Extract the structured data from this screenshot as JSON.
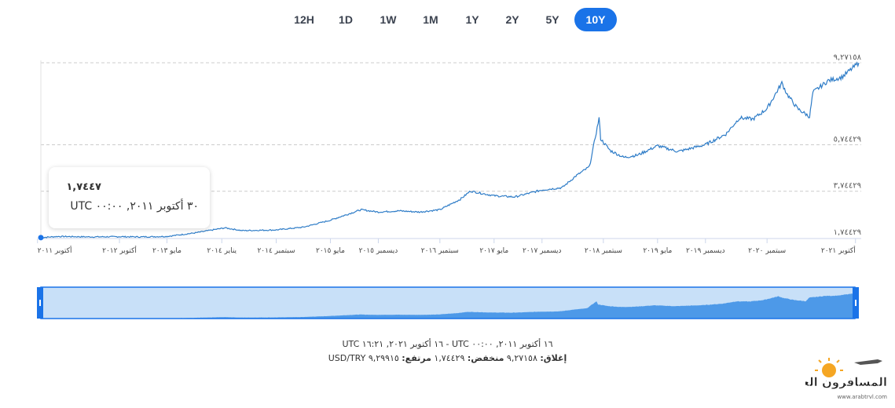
{
  "range_buttons": [
    {
      "label": "12H",
      "active": false
    },
    {
      "label": "1D",
      "active": false
    },
    {
      "label": "1W",
      "active": false
    },
    {
      "label": "1M",
      "active": false
    },
    {
      "label": "1Y",
      "active": false
    },
    {
      "label": "2Y",
      "active": false
    },
    {
      "label": "5Y",
      "active": false
    },
    {
      "label": "10Y",
      "active": true
    }
  ],
  "tooltip": {
    "value": "١,٧٤٤٧",
    "date": "٣٠ أكتوبر ٢٠١١, ٠٠:٠٠ UTC"
  },
  "footer": {
    "period": "UTC ١٦ أكتوبر ٢٠٢١, ١٦:٢١ - UTC ١٦ أكتوبر ٢٠١١, ٠٠:٠٠",
    "close_label": "إغلاق:",
    "close_value": "٩,٢٧١٥٨",
    "low_label": "منخفض:",
    "low_value": "١,٧٤٤٢٩",
    "high_label": "مرتفع:",
    "high_value": "٩,٢٩٩١٥",
    "pair": "USD/TRY"
  },
  "watermark": {
    "brand": "المسافرون العرب",
    "url": "www.arabtrvl.com"
  },
  "colors": {
    "accent": "#1a73e8",
    "line": "#2e7cc7",
    "navigator_fill": "#4d99e8",
    "navigator_bg": "#c8e0f8",
    "grid": "#cccccc"
  },
  "chart_data": {
    "type": "line",
    "title": "",
    "xlabel": "",
    "ylabel": "",
    "x_range": [
      "2011-10-16",
      "2021-10-16"
    ],
    "ylim": [
      1.74429,
      9.27158
    ],
    "grid": "horizontal dashed",
    "y_ticks": [
      {
        "value": 1.74429,
        "label": "١,٧٤٤٢٩"
      },
      {
        "value": 3.74429,
        "label": "٣,٧٤٤٢٩"
      },
      {
        "value": 5.74429,
        "label": "٥,٧٤٤٢٩"
      },
      {
        "value": 9.27158,
        "label": "٩,٢٧١٥٨"
      }
    ],
    "x_ticks": [
      {
        "date": "2011-10-01",
        "label": "أكتوبر ٢٠١١"
      },
      {
        "date": "2012-10-01",
        "label": "أكتوبر ٢٠١٢"
      },
      {
        "date": "2013-05-01",
        "label": "مايو ٢٠١٣"
      },
      {
        "date": "2014-01-01",
        "label": "يناير ٢٠١٤"
      },
      {
        "date": "2014-09-01",
        "label": "سبتمبر ٢٠١٤"
      },
      {
        "date": "2015-05-01",
        "label": "مايو ٢٠١٥"
      },
      {
        "date": "2015-12-01",
        "label": "ديسمبر ٢٠١٥"
      },
      {
        "date": "2016-09-01",
        "label": "سبتمبر ٢٠١٦"
      },
      {
        "date": "2017-05-01",
        "label": "مايو ٢٠١٧"
      },
      {
        "date": "2017-12-01",
        "label": "ديسمبر ٢٠١٧"
      },
      {
        "date": "2018-09-01",
        "label": "سبتمبر ٢٠١٨"
      },
      {
        "date": "2019-05-01",
        "label": "مايو ٢٠١٩"
      },
      {
        "date": "2019-12-01",
        "label": "ديسمبر ٢٠١٩"
      },
      {
        "date": "2020-09-01",
        "label": "سبتمبر ٢٠٢٠"
      },
      {
        "date": "2021-10-01",
        "label": "أكتوبر ٢٠٢١"
      }
    ],
    "series": [
      {
        "x": [
          "2011-10-16",
          "2012-01-01",
          "2012-06-01",
          "2012-10-01",
          "2013-01-01",
          "2013-05-01",
          "2013-09-01",
          "2014-01-15",
          "2014-04-01",
          "2014-09-01",
          "2015-01-01",
          "2015-05-01",
          "2015-09-15",
          "2015-12-01",
          "2016-03-01",
          "2016-06-01",
          "2016-09-01",
          "2016-12-01",
          "2017-01-15",
          "2017-05-01",
          "2017-08-01",
          "2017-12-01",
          "2018-03-01",
          "2018-05-01",
          "2018-07-01",
          "2018-08-13",
          "2018-08-20",
          "2018-10-01",
          "2018-12-01",
          "2019-02-01",
          "2019-05-01",
          "2019-08-01",
          "2019-12-01",
          "2020-03-01",
          "2020-05-01",
          "2020-07-01",
          "2020-09-01",
          "2020-11-06",
          "2020-12-01",
          "2021-01-15",
          "2021-03-10",
          "2021-03-25",
          "2021-06-01",
          "2021-08-01",
          "2021-10-16"
        ],
        "values": [
          1.75,
          1.8,
          1.78,
          1.79,
          1.78,
          1.8,
          1.95,
          2.17,
          2.05,
          2.08,
          2.2,
          2.5,
          2.95,
          2.85,
          2.9,
          2.85,
          2.95,
          3.4,
          3.75,
          3.55,
          3.5,
          3.8,
          3.9,
          4.4,
          4.8,
          6.9,
          6.0,
          5.5,
          5.2,
          5.3,
          5.7,
          5.45,
          5.75,
          6.2,
          6.9,
          6.85,
          7.3,
          8.4,
          7.9,
          7.3,
          6.95,
          8.0,
          8.5,
          8.65,
          9.27
        ]
      }
    ]
  }
}
